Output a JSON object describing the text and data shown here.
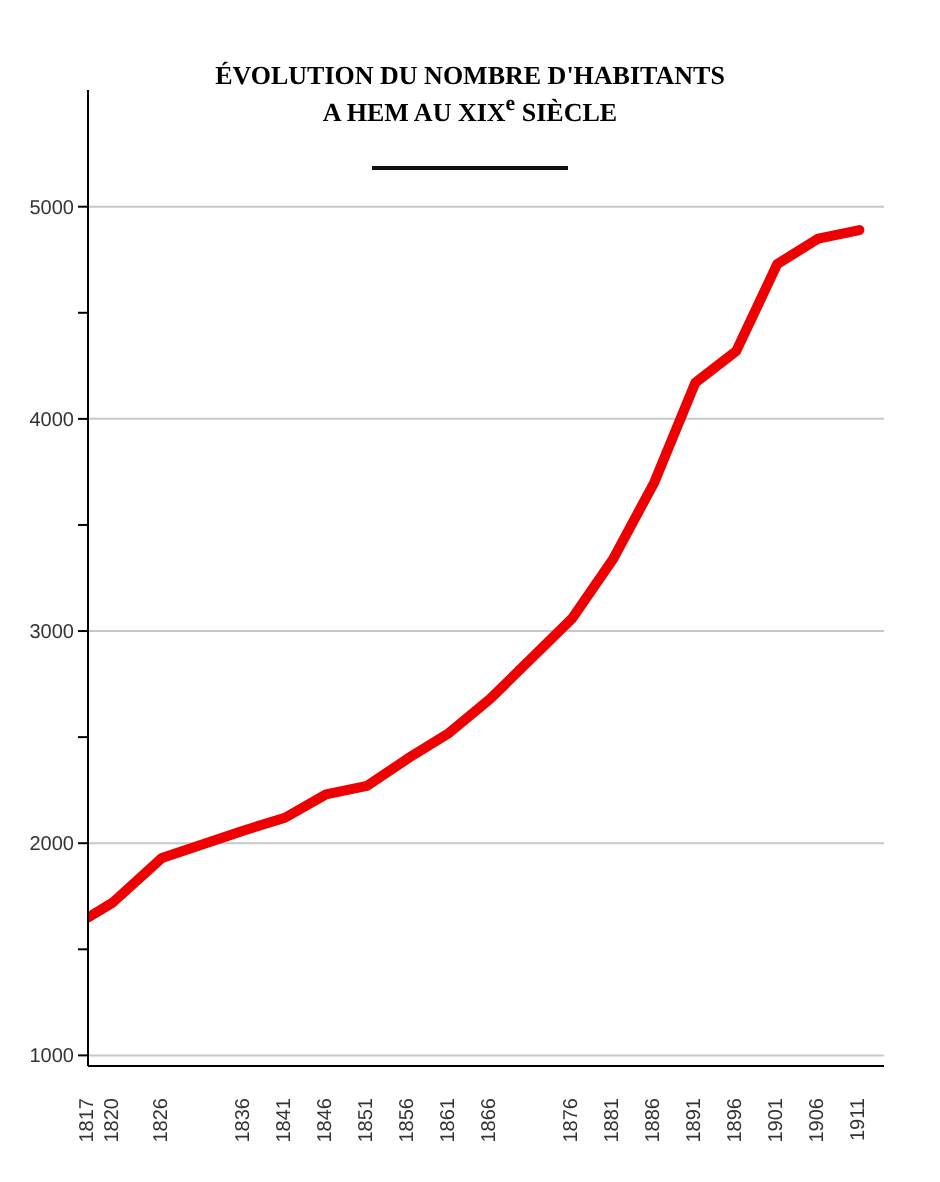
{
  "chart_data": {
    "type": "line",
    "title": "ÉVOLUTION DU NOMBRE D'HABITANTS\nA HEM AU XIX$^{e}$ SIÈCLE",
    "x": [
      1817,
      1820,
      1826,
      1836,
      1841,
      1846,
      1851,
      1856,
      1861,
      1866,
      1876,
      1881,
      1886,
      1891,
      1896,
      1901,
      1906,
      1911
    ],
    "series": [
      {
        "color": "#ee0000",
        "values": [
          1650,
          1720,
          1930,
          2060,
          2120,
          2230,
          2270,
          2400,
          2520,
          2680,
          3060,
          3340,
          3700,
          4170,
          4320,
          4730,
          4850,
          4890
        ]
      }
    ],
    "xlim": [
      1817,
      1914
    ],
    "xticks": [
      1817,
      1820,
      1826,
      1836,
      1841,
      1846,
      1851,
      1856,
      1861,
      1866,
      1876,
      1881,
      1886,
      1891,
      1896,
      1901,
      1906,
      1911
    ],
    "ylim": [
      950,
      5550
    ],
    "yticks": [
      1000,
      {
        "value": 1500,
        "label": null
      },
      2000,
      {
        "value": 2500,
        "label": null
      },
      3000,
      {
        "value": 3500,
        "label": null
      },
      4000,
      {
        "value": 4500,
        "label": null
      },
      5000
    ],
    "grid": "y",
    "marker": "none",
    "line_style": "solid"
  }
}
